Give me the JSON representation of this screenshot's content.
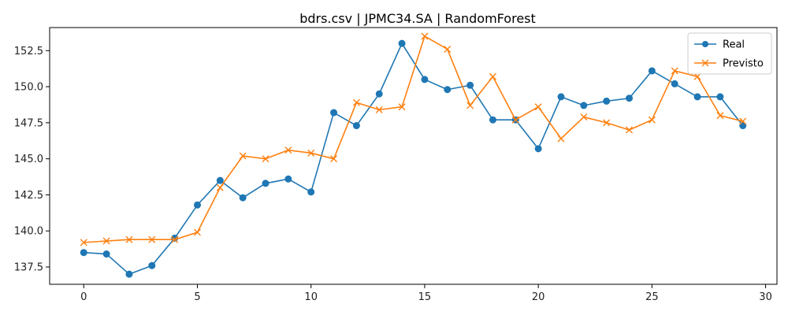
{
  "chart_data": {
    "type": "line",
    "title": "bdrs.csv | JPMC34.SA | RandomForest",
    "xlabel": "",
    "ylabel": "",
    "xlim": [
      -1.5,
      30.5
    ],
    "ylim": [
      136.3,
      154.1
    ],
    "xticks": [
      0,
      5,
      10,
      15,
      20,
      25,
      30
    ],
    "yticks": [
      137.5,
      140.0,
      142.5,
      145.0,
      147.5,
      150.0,
      152.5
    ],
    "ytick_labels": [
      "137.5",
      "140.0",
      "142.5",
      "145.0",
      "147.5",
      "150.0",
      "152.5"
    ],
    "grid": false,
    "legend_position": "top-right",
    "x": [
      0,
      1,
      2,
      3,
      4,
      5,
      6,
      7,
      8,
      9,
      10,
      11,
      12,
      13,
      14,
      15,
      16,
      17,
      18,
      19,
      20,
      21,
      22,
      23,
      24,
      25,
      26,
      27,
      28,
      29
    ],
    "series": [
      {
        "name": "Real",
        "color": "#1f77b4",
        "marker": "circle",
        "values": [
          138.5,
          138.4,
          137.0,
          137.6,
          139.5,
          141.8,
          143.5,
          142.3,
          143.3,
          143.6,
          142.7,
          148.2,
          147.3,
          149.5,
          153.0,
          150.5,
          149.8,
          150.1,
          147.7,
          147.7,
          145.7,
          149.3,
          148.7,
          149.0,
          149.2,
          151.1,
          150.2,
          149.3,
          149.3,
          147.3
        ]
      },
      {
        "name": "Previsto",
        "color": "#ff7f0e",
        "marker": "x",
        "values": [
          139.2,
          139.3,
          139.4,
          139.4,
          139.4,
          139.9,
          143.0,
          145.2,
          145.0,
          145.6,
          145.4,
          145.0,
          148.9,
          148.4,
          148.6,
          153.5,
          152.6,
          148.7,
          150.7,
          147.7,
          148.6,
          146.4,
          147.9,
          147.5,
          147.0,
          147.7,
          151.1,
          150.7,
          148.0,
          147.6
        ]
      }
    ]
  }
}
